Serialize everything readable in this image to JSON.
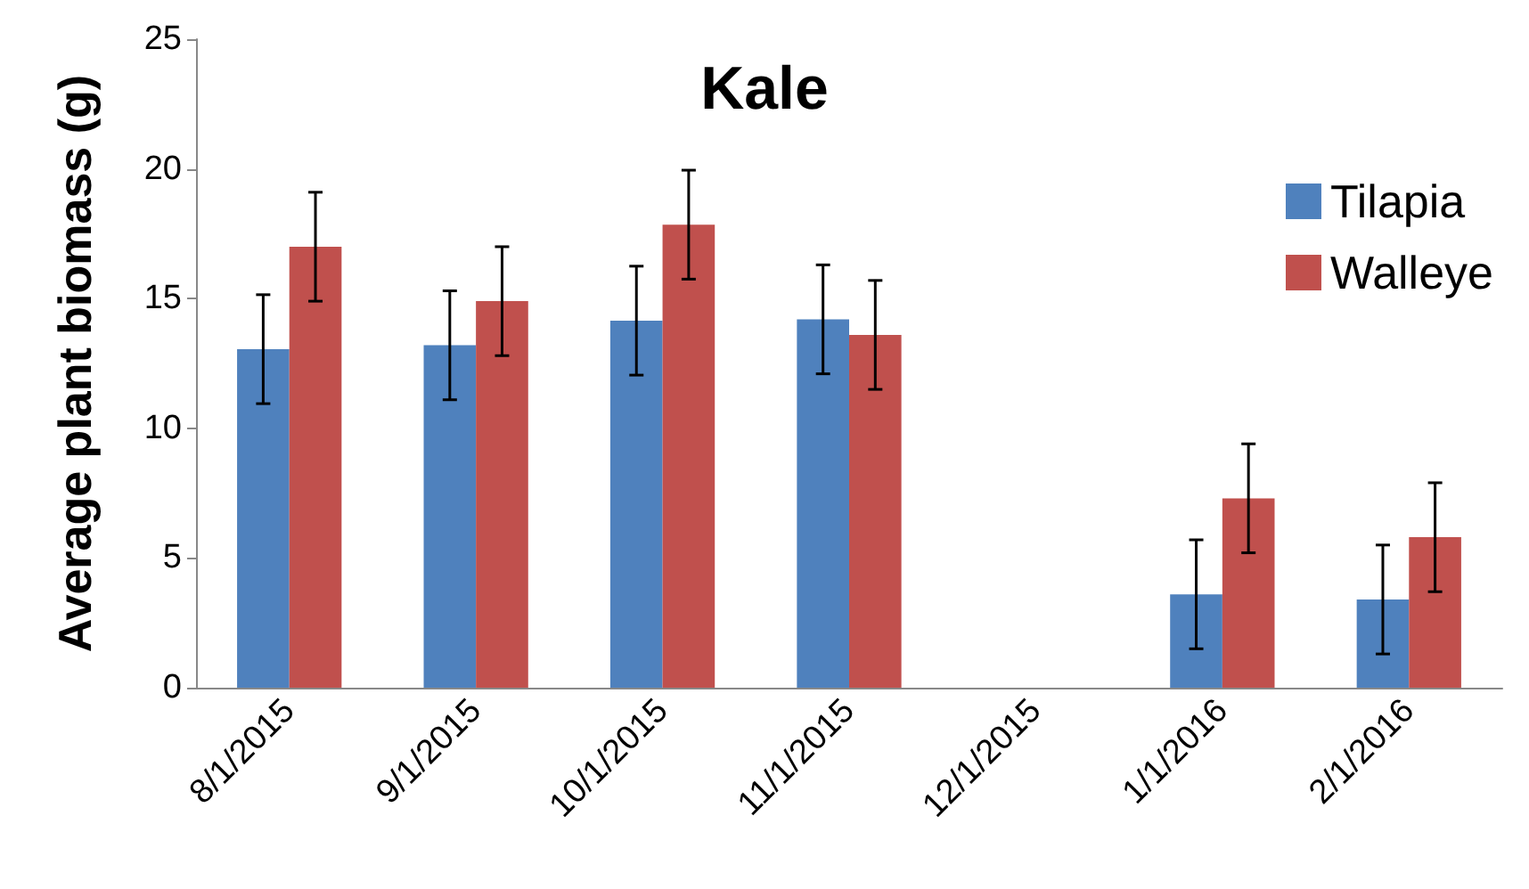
{
  "chart_data": {
    "type": "bar",
    "title": "Kale",
    "ylabel": "Average plant biomass (g)",
    "categories": [
      "8/1/2015",
      "9/1/2015",
      "10/1/2015",
      "11/1/2015",
      "12/1/2015",
      "1/1/2016",
      "2/1/2016"
    ],
    "series": [
      {
        "name": "Tilapia",
        "color": "#4f81bd",
        "values": [
          13.05,
          13.2,
          14.15,
          14.2,
          null,
          3.6,
          3.4
        ],
        "errors": [
          2.1,
          2.1,
          2.1,
          2.1,
          null,
          2.1,
          2.1
        ]
      },
      {
        "name": "Walleye",
        "color": "#c0504d",
        "values": [
          17.0,
          14.9,
          17.85,
          13.6,
          null,
          7.3,
          5.8
        ],
        "errors": [
          2.1,
          2.1,
          2.1,
          2.1,
          null,
          2.1,
          2.1
        ]
      }
    ],
    "ylim": [
      0,
      25
    ],
    "yticks": [
      0,
      5,
      10,
      15,
      20,
      25
    ],
    "grid": false,
    "legend": "right"
  }
}
